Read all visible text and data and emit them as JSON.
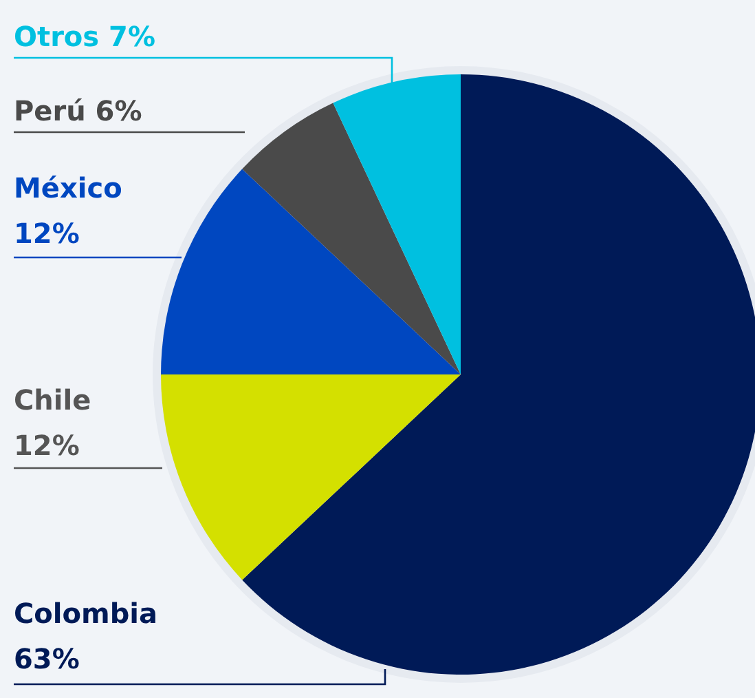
{
  "chart_data": {
    "type": "pie",
    "categories": [
      "Colombia",
      "Chile",
      "México",
      "Perú",
      "Otros"
    ],
    "values": [
      63,
      12,
      12,
      6,
      7
    ],
    "value_labels": [
      "63%",
      "12%",
      "12%",
      "6%",
      "7%"
    ],
    "colors": [
      "#001a57",
      "#d4e000",
      "#0047c0",
      "#4a4a4a",
      "#00c0e0"
    ]
  }
}
